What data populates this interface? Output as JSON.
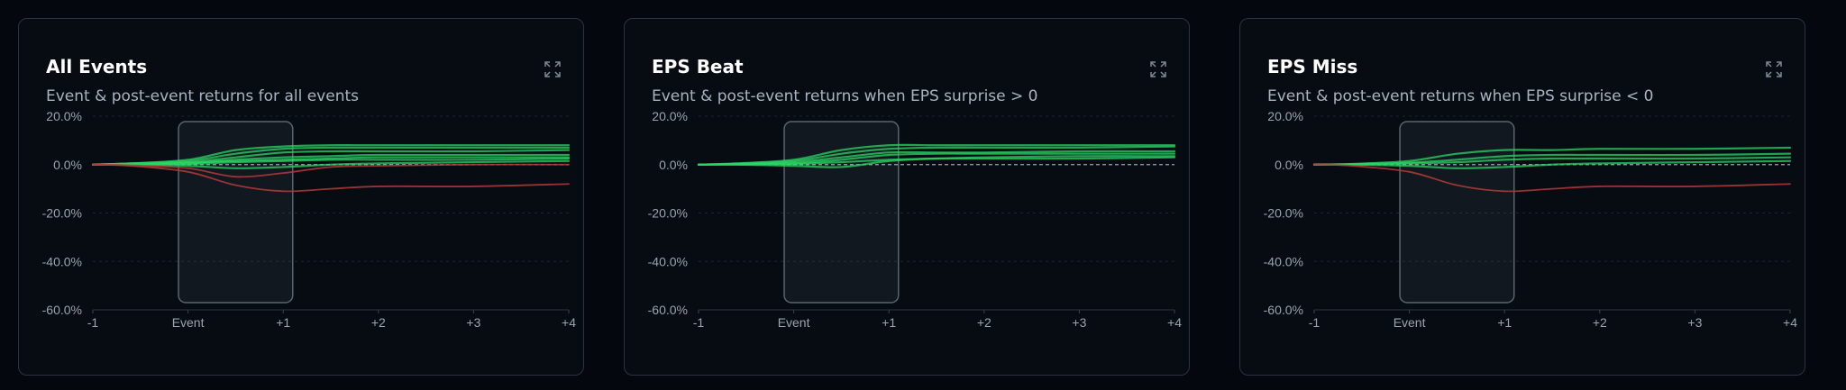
{
  "icons": {
    "expand": "expand-icon"
  },
  "colors": {
    "background": "#04080e",
    "card_background": "#070c13",
    "card_border": "#2b333d",
    "positive_series": "#2bd664",
    "negative_series": "#b33a3a",
    "event_window": "#5a6470"
  },
  "cards": [
    {
      "title": "All Events",
      "subtitle": "Event & post-event returns for all events",
      "expand_label": "Expand chart"
    },
    {
      "title": "EPS Beat",
      "subtitle": "Event & post-event returns when EPS surprise > 0",
      "expand_label": "Expand chart"
    },
    {
      "title": "EPS Miss",
      "subtitle": "Event & post-event returns when EPS surprise < 0",
      "expand_label": "Expand chart"
    }
  ],
  "chart_data": [
    {
      "type": "line",
      "x": [
        -1,
        -0.6,
        0,
        0.5,
        1,
        1.5,
        2,
        3,
        4
      ],
      "x_tick_labels": [
        "-1",
        "Event",
        "+1",
        "+2",
        "+3",
        "+4"
      ],
      "y_tick_labels": [
        "20.0%",
        "0.0%",
        "-20.0%",
        "-40.0%",
        "-60.0%"
      ],
      "ylim": [
        -60,
        20
      ],
      "y_unit": "%",
      "grid": true,
      "baseline": 0,
      "event_window": [
        -0.1,
        1.1
      ],
      "series": [
        {
          "values": [
            0,
            0.5,
            2,
            6,
            7.5,
            8,
            8,
            8,
            8
          ],
          "sign": "positive"
        },
        {
          "values": [
            0,
            0.5,
            1.5,
            4.5,
            6.5,
            7,
            7,
            7,
            7
          ],
          "sign": "positive"
        },
        {
          "values": [
            0,
            0.3,
            1,
            3,
            5,
            5.5,
            5.5,
            5.5,
            6
          ],
          "sign": "positive"
        },
        {
          "values": [
            0,
            0.2,
            0.5,
            2,
            3,
            3.5,
            4,
            4,
            4
          ],
          "sign": "positive"
        },
        {
          "values": [
            0,
            0.2,
            0.8,
            1.5,
            2,
            2.5,
            3,
            3,
            3
          ],
          "sign": "positive"
        },
        {
          "values": [
            0,
            0.1,
            0.3,
            1,
            1.5,
            2,
            2,
            2,
            2.5
          ],
          "sign": "positive"
        },
        {
          "values": [
            0,
            0,
            -0.5,
            -1.5,
            -1,
            0,
            0.5,
            1,
            1.5
          ],
          "sign": "positive"
        },
        {
          "values": [
            0,
            -0.3,
            -1.5,
            -5,
            -3.5,
            -1,
            -0.5,
            0,
            0
          ],
          "sign": "negative"
        },
        {
          "values": [
            0,
            -0.5,
            -3,
            -8.5,
            -11,
            -10,
            -9,
            -9,
            -8
          ],
          "sign": "negative"
        }
      ]
    },
    {
      "type": "line",
      "x": [
        -1,
        -0.6,
        0,
        0.5,
        1,
        1.5,
        2,
        3,
        4
      ],
      "x_tick_labels": [
        "-1",
        "Event",
        "+1",
        "+2",
        "+3",
        "+4"
      ],
      "y_tick_labels": [
        "20.0%",
        "0.0%",
        "-20.0%",
        "-40.0%",
        "-60.0%"
      ],
      "ylim": [
        -60,
        20
      ],
      "y_unit": "%",
      "grid": true,
      "baseline": 0,
      "event_window": [
        -0.1,
        1.1
      ],
      "series": [
        {
          "values": [
            0,
            0.5,
            2,
            6,
            8,
            8,
            8,
            8,
            8
          ],
          "sign": "positive"
        },
        {
          "values": [
            0,
            0.4,
            1.5,
            4.5,
            6.5,
            7,
            7,
            7,
            7.5
          ],
          "sign": "positive"
        },
        {
          "values": [
            0,
            0.2,
            1,
            3,
            5,
            5,
            5,
            5.5,
            5.5
          ],
          "sign": "positive"
        },
        {
          "values": [
            0,
            0.1,
            0.5,
            2,
            4,
            4.5,
            4.5,
            4.5,
            4.5
          ],
          "sign": "positive"
        },
        {
          "values": [
            0,
            0,
            -0.5,
            -1,
            1.5,
            2.5,
            3,
            3.5,
            3.5
          ],
          "sign": "positive"
        },
        {
          "values": [
            0,
            0.1,
            0.3,
            1,
            2,
            2.5,
            2.5,
            2.5,
            3
          ],
          "sign": "positive"
        }
      ]
    },
    {
      "type": "line",
      "x": [
        -1,
        -0.6,
        0,
        0.5,
        1,
        1.5,
        2,
        3,
        4
      ],
      "x_tick_labels": [
        "-1",
        "Event",
        "+1",
        "+2",
        "+3",
        "+4"
      ],
      "y_tick_labels": [
        "20.0%",
        "0.0%",
        "-20.0%",
        "-40.0%",
        "-60.0%"
      ],
      "ylim": [
        -60,
        20
      ],
      "y_unit": "%",
      "grid": true,
      "baseline": 0,
      "event_window": [
        -0.1,
        1.1
      ],
      "series": [
        {
          "values": [
            0,
            0.3,
            1.5,
            4.5,
            6,
            6,
            6.5,
            6.5,
            7
          ],
          "sign": "positive"
        },
        {
          "values": [
            0,
            0.2,
            0.8,
            2,
            3.5,
            4,
            4,
            4,
            4.5
          ],
          "sign": "positive"
        },
        {
          "values": [
            0,
            0.1,
            0.5,
            1,
            2,
            2.5,
            2.5,
            2.5,
            3
          ],
          "sign": "positive"
        },
        {
          "values": [
            0,
            0,
            -0.5,
            -1.5,
            -1,
            0,
            0.5,
            1,
            1.5
          ],
          "sign": "positive"
        },
        {
          "values": [
            0,
            -0.5,
            -3,
            -8.5,
            -11,
            -10,
            -9,
            -9,
            -8
          ],
          "sign": "negative"
        }
      ]
    }
  ]
}
